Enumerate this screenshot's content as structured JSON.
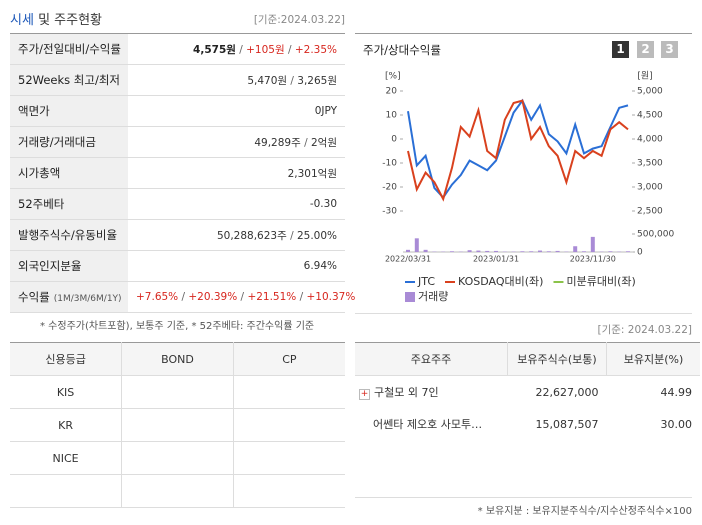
{
  "header": {
    "title": "시세",
    "title_rest": "및 주주현황",
    "date": "[기준:2024.03.22]"
  },
  "price_table": {
    "separator": " / ",
    "rows": [
      {
        "label": "주가/전일대비/수익률",
        "parts": [
          {
            "text": "4,575원",
            "color": "#222",
            "bold": true
          },
          {
            "text": "+105원",
            "color": "#d7261e"
          },
          {
            "text": "+2.35%",
            "color": "#d7261e"
          }
        ]
      },
      {
        "label": "52Weeks 최고/최저",
        "parts": [
          {
            "text": "5,470원",
            "color": "#333"
          },
          {
            "text": "3,265원",
            "color": "#333"
          }
        ]
      },
      {
        "label": "액면가",
        "parts": [
          {
            "text": "0JPY",
            "color": "#333"
          }
        ]
      },
      {
        "label": "거래량/거래대금",
        "parts": [
          {
            "text": "49,289주",
            "color": "#333"
          },
          {
            "text": "2억원",
            "color": "#333"
          }
        ]
      },
      {
        "label": "시가총액",
        "parts": [
          {
            "text": "2,301억원",
            "color": "#333"
          }
        ]
      },
      {
        "label": "52주베타",
        "parts": [
          {
            "text": "-0.30",
            "color": "#333"
          }
        ]
      },
      {
        "label": "발행주식수/유동비율",
        "parts": [
          {
            "text": "50,288,623주",
            "color": "#333"
          },
          {
            "text": "25.00%",
            "color": "#333"
          }
        ]
      },
      {
        "label": "외국인지분율",
        "parts": [
          {
            "text": "6.94%",
            "color": "#333"
          }
        ]
      },
      {
        "label": "수익률",
        "label_sub": "(1M/3M/6M/1Y)",
        "parts": [
          {
            "text": "+7.65%",
            "color": "#d7261e"
          },
          {
            "text": "+20.39%",
            "color": "#d7261e"
          },
          {
            "text": "+21.51%",
            "color": "#d7261e"
          },
          {
            "text": "+10.37%",
            "color": "#d7261e"
          }
        ]
      }
    ]
  },
  "notes": {
    "left": "* 수정주가(차트포함), 보통주 기준, * 52주베타: 주간수익률 기준",
    "right_date": "[기준: 2024.03.22]",
    "footer": "* 보유지분 : 보유지분주식수/지수산정주식수×100"
  },
  "tabs": [
    "1",
    "2",
    "3"
  ],
  "chart_data": {
    "type": "line",
    "title": "주가/상대수익률",
    "y_unit": "[%]",
    "y2_unit": "[원]",
    "categories": [
      "2022/03/31",
      null,
      null,
      null,
      null,
      null,
      null,
      null,
      null,
      null,
      "2023/01/31",
      null,
      null,
      null,
      null,
      null,
      null,
      null,
      null,
      null,
      null,
      "2023/11/30",
      null,
      null,
      null,
      null
    ],
    "ylim": [
      -30,
      20
    ],
    "yticks": [
      20,
      10,
      0,
      -10,
      -20,
      -30
    ],
    "y2lim": [
      2500,
      5000
    ],
    "y2ticks": [
      {
        "value": 5000,
        "label": "5,000"
      },
      {
        "value": 4500,
        "label": "4,500"
      },
      {
        "value": 4000,
        "label": "4,000"
      },
      {
        "value": 3500,
        "label": "3,500"
      },
      {
        "value": 3000,
        "label": "3,000"
      },
      {
        "value": 2500,
        "label": "2,500"
      }
    ],
    "volume_lim": [
      0,
      500000
    ],
    "volume_ticks": [
      {
        "value": 500000,
        "label": "500,000"
      },
      0
    ],
    "series": [
      {
        "name": "JTC",
        "color": "#2a6fd6",
        "axis": "y2",
        "values": [
          4580,
          3450,
          3650,
          2980,
          2780,
          3050,
          3250,
          3550,
          3450,
          3350,
          3550,
          4050,
          4550,
          4800,
          4400,
          4700,
          4100,
          3950,
          3700,
          4300,
          3700,
          3800,
          3850,
          4250,
          4650,
          4700
        ]
      },
      {
        "name": "KOSDAQ대비(좌)",
        "color": "#d9411e",
        "axis": "y",
        "values": [
          -5,
          -21,
          -14,
          -18,
          -25,
          -12,
          5,
          1,
          12,
          -5,
          -8,
          8,
          15,
          16,
          0,
          5,
          -3,
          -7,
          -18,
          -5,
          -8,
          -5,
          -7,
          4,
          7,
          4
        ]
      },
      {
        "name": "미분류대비(좌)",
        "color": "#8bc34a",
        "axis": "y",
        "values": [
          null,
          null,
          null,
          null,
          null,
          null,
          null,
          null,
          null,
          null,
          null,
          null,
          null,
          null,
          null,
          null,
          null,
          null,
          null,
          null,
          null,
          null,
          null,
          null,
          null,
          null
        ]
      },
      {
        "name": "거래량",
        "color": "#a98bd6",
        "axis": "volume",
        "type": "bar",
        "values": [
          60000,
          380000,
          60000,
          10000,
          10000,
          20000,
          10000,
          50000,
          40000,
          30000,
          30000,
          10000,
          10000,
          20000,
          20000,
          40000,
          20000,
          30000,
          10000,
          160000,
          20000,
          420000,
          10000,
          20000,
          10000,
          20000
        ]
      }
    ]
  },
  "credit_table": {
    "headers": [
      "신용등급",
      "BOND",
      "CP"
    ],
    "agencies": [
      "KIS",
      "KR",
      "NICE"
    ]
  },
  "holders_table": {
    "headers": [
      "주요주주",
      "보유주식수(보통)",
      "보유지분(%)"
    ],
    "rows": [
      [
        "구철모 외 7인",
        "22,627,000",
        "44.99"
      ],
      [
        "어쎈타 제오호 사모투…",
        "15,087,507",
        "30.00"
      ]
    ]
  }
}
